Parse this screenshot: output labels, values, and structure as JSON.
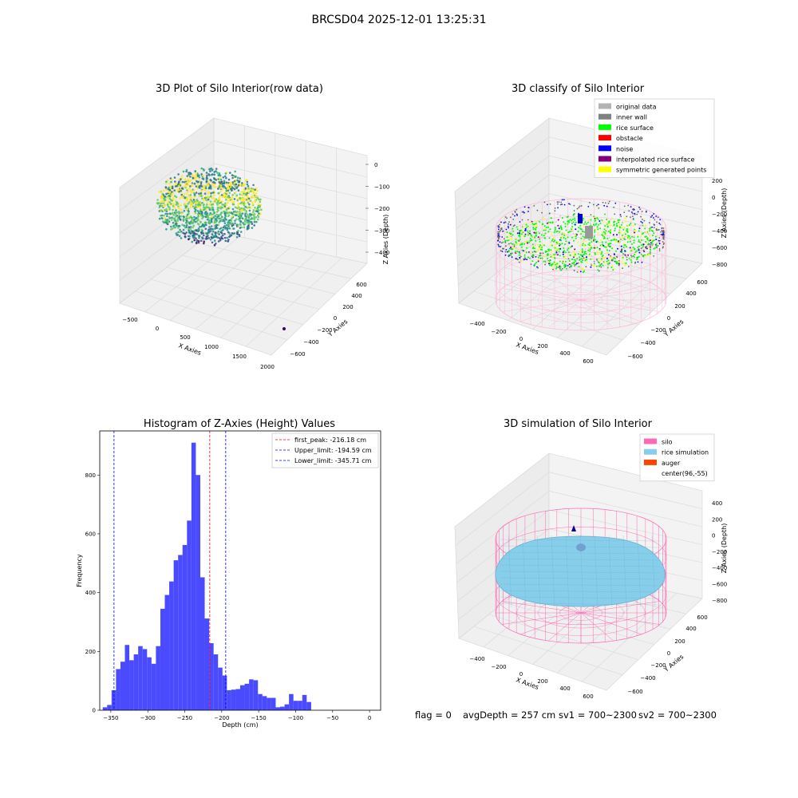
{
  "figure": {
    "suptitle": "BRCSD04 2025-12-01 13:25:31",
    "panel_titles": [
      "3D Plot of Silo Interior(row data)",
      "3D classify of Silo Interior",
      "Histogram of Z-Axies (Height) Values",
      "3D simulation of Silo Interior"
    ],
    "footer": {
      "flag": "flag = 0",
      "avg_depth": "avgDepth = 257 cm",
      "sv1": "sv1 = 700~2300",
      "sv2": "sv2 = 700~2300"
    }
  },
  "chart_data": [
    {
      "type": "scatter",
      "subtype": "3d-scatter",
      "title": "3D Plot of Silo Interior(row data)",
      "xlabel": "X Axies",
      "ylabel": "Y Axies",
      "zlabel": "Z Axies (Depth)",
      "x_ticks": [
        "−500",
        "0",
        "500",
        "1000",
        "1500",
        "2000"
      ],
      "y_ticks": [
        "−600",
        "−400",
        "−200",
        "0",
        "200",
        "400",
        "600"
      ],
      "z_ticks": [
        "0",
        "−100",
        "−200",
        "−300",
        "−400"
      ],
      "xlim": [
        -600,
        2000
      ],
      "ylim": [
        -700,
        700
      ],
      "zlim": [
        -450,
        20
      ],
      "colormap": "viridis",
      "outlier_point": {
        "x": 2000,
        "y": -600,
        "z": -450
      }
    },
    {
      "type": "scatter",
      "subtype": "3d-scatter-classified",
      "title": "3D classify of Silo Interior",
      "xlabel": "X Axies",
      "ylabel": "Y Axies",
      "zlabel": "Z Axies (Depth)",
      "x_ticks": [
        "−400",
        "−200",
        "0",
        "200",
        "400",
        "600"
      ],
      "y_ticks": [
        "−600",
        "−400",
        "−200",
        "0",
        "200",
        "400",
        "600"
      ],
      "z_ticks": [
        "200",
        "0",
        "−200",
        "−400",
        "−600",
        "−800"
      ],
      "legend_position": "top-right",
      "legend": [
        {
          "label": "original data",
          "color": "#b3b3b3"
        },
        {
          "label": "inner wall",
          "color": "#808080"
        },
        {
          "label": "rice surface",
          "color": "#00ff00"
        },
        {
          "label": "obstacle",
          "color": "#ff0000"
        },
        {
          "label": "noise",
          "color": "#0000ff"
        },
        {
          "label": "interpolated rice surface",
          "color": "#800080"
        },
        {
          "label": "symmetric generated points",
          "color": "#ffff00"
        }
      ],
      "silo_wireframe_color": "#ffb6d9"
    },
    {
      "type": "bar",
      "subtype": "histogram",
      "title": "Histogram of Z-Axies (Height) Values",
      "xlabel": "Depth (cm)",
      "ylabel": "Frequency",
      "xlim": [
        -365,
        15
      ],
      "ylim": [
        0,
        950
      ],
      "x_ticks": [
        -350,
        -300,
        -250,
        -200,
        -150,
        -100,
        -50,
        0
      ],
      "x_tick_labels": [
        "−350",
        "−300",
        "−250",
        "−200",
        "−150",
        "−100",
        "−50",
        "0"
      ],
      "y_ticks": [
        0,
        200,
        400,
        600,
        800
      ],
      "bar_color": "#4a4aff",
      "bin_width": 6,
      "bins": [
        {
          "x0": -361,
          "x1": -355,
          "value": 10
        },
        {
          "x0": -355,
          "x1": -349,
          "value": 18
        },
        {
          "x0": -349,
          "x1": -343,
          "value": 68
        },
        {
          "x0": -343,
          "x1": -337,
          "value": 140
        },
        {
          "x0": -337,
          "x1": -331,
          "value": 165
        },
        {
          "x0": -331,
          "x1": -325,
          "value": 222
        },
        {
          "x0": -325,
          "x1": -319,
          "value": 170
        },
        {
          "x0": -319,
          "x1": -313,
          "value": 190
        },
        {
          "x0": -313,
          "x1": -307,
          "value": 218
        },
        {
          "x0": -307,
          "x1": -301,
          "value": 208
        },
        {
          "x0": -301,
          "x1": -295,
          "value": 180
        },
        {
          "x0": -295,
          "x1": -289,
          "value": 158
        },
        {
          "x0": -289,
          "x1": -283,
          "value": 218
        },
        {
          "x0": -283,
          "x1": -277,
          "value": 345
        },
        {
          "x0": -277,
          "x1": -271,
          "value": 392
        },
        {
          "x0": -271,
          "x1": -265,
          "value": 438
        },
        {
          "x0": -265,
          "x1": -259,
          "value": 510
        },
        {
          "x0": -259,
          "x1": -253,
          "value": 528
        },
        {
          "x0": -253,
          "x1": -247,
          "value": 562
        },
        {
          "x0": -247,
          "x1": -241,
          "value": 645
        },
        {
          "x0": -241,
          "x1": -235,
          "value": 910
        },
        {
          "x0": -235,
          "x1": -229,
          "value": 800
        },
        {
          "x0": -229,
          "x1": -223,
          "value": 452
        },
        {
          "x0": -223,
          "x1": -217,
          "value": 312
        },
        {
          "x0": -217,
          "x1": -211,
          "value": 228
        },
        {
          "x0": -211,
          "x1": -205,
          "value": 190
        },
        {
          "x0": -205,
          "x1": -199,
          "value": 145
        },
        {
          "x0": -199,
          "x1": -193,
          "value": 118
        },
        {
          "x0": -193,
          "x1": -187,
          "value": 68
        },
        {
          "x0": -187,
          "x1": -181,
          "value": 70
        },
        {
          "x0": -181,
          "x1": -175,
          "value": 72
        },
        {
          "x0": -175,
          "x1": -169,
          "value": 85
        },
        {
          "x0": -169,
          "x1": -163,
          "value": 90
        },
        {
          "x0": -163,
          "x1": -157,
          "value": 105
        },
        {
          "x0": -157,
          "x1": -151,
          "value": 102
        },
        {
          "x0": -151,
          "x1": -145,
          "value": 55
        },
        {
          "x0": -145,
          "x1": -139,
          "value": 48
        },
        {
          "x0": -139,
          "x1": -133,
          "value": 42
        },
        {
          "x0": -133,
          "x1": -127,
          "value": 42
        },
        {
          "x0": -127,
          "x1": -121,
          "value": 10
        },
        {
          "x0": -121,
          "x1": -115,
          "value": 12
        },
        {
          "x0": -115,
          "x1": -109,
          "value": 20
        },
        {
          "x0": -109,
          "x1": -103,
          "value": 55
        },
        {
          "x0": -103,
          "x1": -97,
          "value": 32
        },
        {
          "x0": -97,
          "x1": -91,
          "value": 32
        },
        {
          "x0": -91,
          "x1": -85,
          "value": 52
        },
        {
          "x0": -85,
          "x1": -79,
          "value": 28
        }
      ],
      "vlines": [
        {
          "label": "first_peak: -216.18 cm",
          "x": -216.18,
          "color": "#ff0000"
        },
        {
          "label": "Upper_limit: -194.59 cm",
          "x": -194.59,
          "color": "#0000ff"
        },
        {
          "label": "Lower_limit: -345.71 cm",
          "x": -345.71,
          "color": "#0000ff"
        }
      ],
      "legend_position": "top-right"
    },
    {
      "type": "scatter",
      "subtype": "3d-surface-simulation",
      "title": "3D simulation of Silo Interior",
      "xlabel": "X Axies",
      "ylabel": "Y Axies",
      "zlabel": "Z Axies (Depth)",
      "x_ticks": [
        "−400",
        "−200",
        "0",
        "200",
        "400",
        "600"
      ],
      "y_ticks": [
        "−600",
        "−400",
        "−200",
        "0",
        "200",
        "400",
        "600"
      ],
      "z_ticks": [
        "400",
        "200",
        "0",
        "−200",
        "−400",
        "−600",
        "−800"
      ],
      "legend_position": "top-right",
      "legend": [
        {
          "label": "silo",
          "color": "#ff69b4"
        },
        {
          "label": "rice simulation",
          "color": "#87ceeb"
        },
        {
          "label": "auger",
          "color": "#ff4500"
        },
        {
          "label": "center(96,-55)",
          "color": "#ffffff"
        }
      ]
    }
  ]
}
